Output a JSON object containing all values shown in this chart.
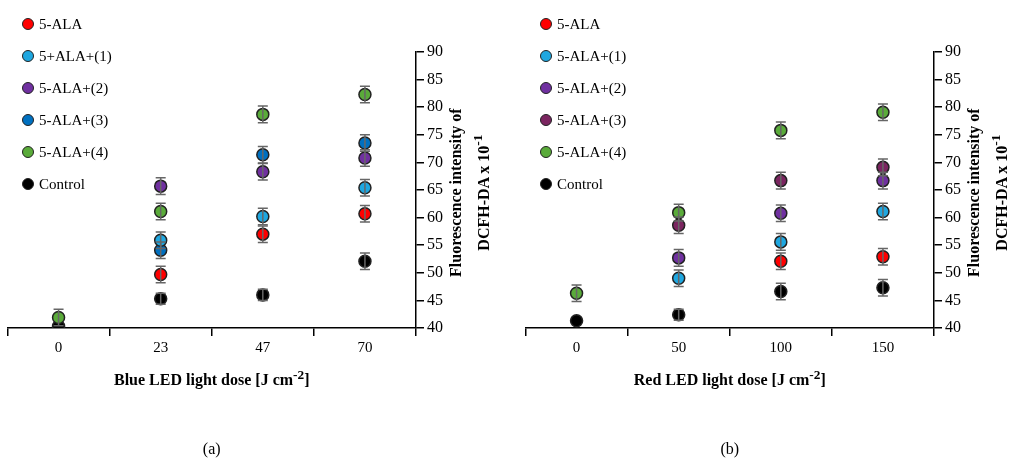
{
  "chart_data": [
    {
      "type": "scatter",
      "xlabel": "Blue LED light dose [J cm$^{-2}$]",
      "ylabel": "Fluorescence intensity of DCFH-DA x 10$^{-1}$",
      "categories": [
        "0",
        "23",
        "47",
        "70"
      ],
      "ylim": [
        40,
        90
      ],
      "yticks": [
        40,
        45,
        50,
        55,
        60,
        65,
        70,
        75,
        80,
        85,
        90
      ],
      "marker": "circle",
      "legend": "top left",
      "grid": false,
      "annotations": [
        "(a)"
      ],
      "series": [
        {
          "name": "5-ALA",
          "color": "#ff0000",
          "values": [
            null,
            49.7,
            57.0,
            60.7
          ],
          "errors": [
            null,
            1.5,
            1.5,
            1.5
          ]
        },
        {
          "name": "5+ALA+(1)",
          "color": "#1fa7e0",
          "values": [
            null,
            55.9,
            60.2,
            65.4
          ],
          "errors": [
            null,
            1.5,
            1.5,
            1.5
          ]
        },
        {
          "name": "5-ALA+(2)",
          "color": "#7030a0",
          "values": [
            null,
            65.7,
            68.3,
            70.8
          ],
          "errors": [
            null,
            1.5,
            1.5,
            1.5
          ]
        },
        {
          "name": "5-ALA+(3)",
          "color": "#0070c0",
          "values": [
            null,
            54.1,
            71.4,
            73.5
          ],
          "errors": [
            null,
            1.5,
            1.5,
            1.5
          ]
        },
        {
          "name": "5-ALA+(4)",
          "color": "#5aab3a",
          "values": [
            41.9,
            61.1,
            78.7,
            82.3
          ],
          "errors": [
            1.5,
            1.5,
            1.5,
            1.5
          ]
        },
        {
          "name": "Control",
          "color": "#000000",
          "values": [
            40.3,
            45.3,
            46.0,
            52.1
          ],
          "errors": [
            null,
            1.0,
            1.0,
            1.5
          ]
        }
      ]
    },
    {
      "type": "scatter",
      "xlabel": "Red LED light dose [J cm$^{-2}$]",
      "ylabel": "Fluorescence intensity of DCFH-DA x 10$^{-1}$",
      "categories": [
        "0",
        "50",
        "100",
        "150"
      ],
      "ylim": [
        40,
        90
      ],
      "yticks": [
        40,
        45,
        50,
        55,
        60,
        65,
        70,
        75,
        80,
        85,
        90
      ],
      "marker": "circle",
      "legend": "top left",
      "grid": false,
      "annotations": [
        "(b)"
      ],
      "series": [
        {
          "name": "5-ALA",
          "color": "#ff0000",
          "values": [
            null,
            null,
            52.1,
            52.9
          ],
          "errors": [
            null,
            null,
            1.5,
            1.5
          ]
        },
        {
          "name": "5-ALA+(1)",
          "color": "#1fa7e0",
          "values": [
            null,
            49.0,
            55.6,
            61.1
          ],
          "errors": [
            null,
            1.5,
            1.5,
            1.5
          ]
        },
        {
          "name": "5-ALA+(2)",
          "color": "#7030a0",
          "values": [
            null,
            52.7,
            60.8,
            66.7
          ],
          "errors": [
            null,
            1.5,
            1.5,
            1.5
          ]
        },
        {
          "name": "5-ALA+(3)",
          "color": "#7b2560",
          "values": [
            null,
            58.6,
            66.7,
            69.1
          ],
          "errors": [
            null,
            1.5,
            1.5,
            1.5
          ]
        },
        {
          "name": "5-ALA+(4)",
          "color": "#5aab3a",
          "values": [
            46.3,
            60.9,
            75.8,
            79.1
          ],
          "errors": [
            1.5,
            1.5,
            1.5,
            1.5
          ]
        },
        {
          "name": "Control",
          "color": "#000000",
          "values": [
            41.3,
            42.4,
            46.6,
            47.3
          ],
          "errors": [
            null,
            1.0,
            1.5,
            1.5
          ]
        }
      ]
    }
  ]
}
